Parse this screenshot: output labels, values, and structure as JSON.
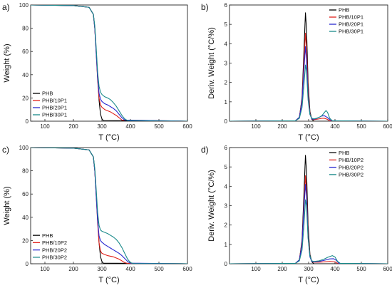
{
  "chart_data": [
    {
      "id": "a",
      "panel_label": "a)",
      "type": "line",
      "xlabel": "T (°C)",
      "ylabel": "Weight (%)",
      "xlim": [
        50,
        600
      ],
      "ylim": [
        0,
        100
      ],
      "xticks": [
        100,
        200,
        300,
        400,
        500,
        600
      ],
      "yticks": [
        0,
        20,
        40,
        60,
        80,
        100
      ],
      "legend_position": "bottom-left",
      "series": [
        {
          "name": "PHB",
          "color": "#000000",
          "x": [
            50,
            200,
            255,
            270,
            275,
            280,
            285,
            290,
            295,
            300,
            305,
            600
          ],
          "y": [
            100,
            99.5,
            98,
            92,
            80,
            60,
            38,
            18,
            6,
            2,
            0.5,
            0
          ]
        },
        {
          "name": "PHB/10P1",
          "color": "#e0201b",
          "x": [
            50,
            200,
            255,
            270,
            275,
            280,
            285,
            290,
            295,
            300,
            310,
            320,
            330,
            340,
            350,
            360,
            370,
            600
          ],
          "y": [
            100,
            99.5,
            98,
            92,
            80,
            58,
            35,
            20,
            14,
            12,
            10,
            9,
            8,
            6.5,
            5,
            3,
            1,
            0
          ]
        },
        {
          "name": "PHB/20P1",
          "color": "#2828d0",
          "x": [
            50,
            200,
            255,
            270,
            275,
            280,
            285,
            290,
            295,
            300,
            310,
            320,
            330,
            340,
            350,
            360,
            370,
            380,
            600
          ],
          "y": [
            100,
            99.5,
            98,
            92,
            80,
            58,
            37,
            24,
            19,
            17,
            15,
            14,
            12.5,
            11,
            9,
            6,
            3,
            1,
            0
          ]
        },
        {
          "name": "PHB/30P1",
          "color": "#1a8a8a",
          "x": [
            50,
            200,
            255,
            270,
            275,
            280,
            285,
            290,
            295,
            300,
            310,
            320,
            330,
            340,
            350,
            360,
            370,
            380,
            390,
            600
          ],
          "y": [
            100,
            99.5,
            98,
            92,
            82,
            63,
            42,
            30,
            25,
            23,
            21,
            20,
            18.5,
            16,
            13,
            9,
            5,
            2,
            0.5,
            0
          ]
        }
      ]
    },
    {
      "id": "b",
      "panel_label": "b)",
      "type": "line",
      "xlabel": "T (°C)",
      "ylabel": "Deriv. Weight (°C/%)",
      "xlim": [
        0,
        600
      ],
      "ylim": [
        0,
        6
      ],
      "xticks": [
        100,
        200,
        300,
        400,
        500,
        600
      ],
      "yticks": [
        0,
        1,
        2,
        3,
        4,
        5,
        6
      ],
      "legend_position": "top-right",
      "series": [
        {
          "name": "PHB",
          "color": "#000000",
          "x": [
            0,
            250,
            265,
            275,
            282,
            288,
            292,
            298,
            305,
            312,
            320,
            600
          ],
          "y": [
            0,
            0.02,
            0.2,
            1.2,
            3.5,
            5.6,
            4.8,
            2.0,
            0.5,
            0.1,
            0,
            0
          ]
        },
        {
          "name": "PHB/10P1",
          "color": "#e0201b",
          "x": [
            0,
            250,
            265,
            275,
            282,
            288,
            292,
            298,
            305,
            312,
            320,
            330,
            340,
            350,
            360,
            370,
            380,
            600
          ],
          "y": [
            0,
            0.02,
            0.2,
            1.1,
            3.0,
            4.55,
            3.8,
            1.6,
            0.4,
            0.12,
            0.08,
            0.1,
            0.12,
            0.15,
            0.15,
            0.1,
            0.02,
            0
          ]
        },
        {
          "name": "PHB/20P1",
          "color": "#2828d0",
          "x": [
            0,
            250,
            265,
            275,
            282,
            288,
            292,
            298,
            305,
            312,
            320,
            330,
            340,
            350,
            360,
            370,
            380,
            390,
            600
          ],
          "y": [
            0,
            0.02,
            0.2,
            1.0,
            2.6,
            3.85,
            3.2,
            1.3,
            0.35,
            0.12,
            0.1,
            0.14,
            0.2,
            0.27,
            0.28,
            0.2,
            0.08,
            0.02,
            0
          ]
        },
        {
          "name": "PHB/30P1",
          "color": "#1a8a8a",
          "x": [
            0,
            250,
            265,
            275,
            282,
            288,
            292,
            298,
            305,
            312,
            320,
            330,
            340,
            350,
            360,
            366,
            372,
            380,
            390,
            600
          ],
          "y": [
            0,
            0.02,
            0.15,
            0.7,
            1.8,
            2.9,
            2.6,
            1.1,
            0.35,
            0.15,
            0.12,
            0.15,
            0.2,
            0.28,
            0.45,
            0.55,
            0.45,
            0.15,
            0.02,
            0
          ]
        }
      ]
    },
    {
      "id": "c",
      "panel_label": "c)",
      "type": "line",
      "xlabel": "T (°C)",
      "ylabel": "Weight (%)",
      "xlim": [
        50,
        600
      ],
      "ylim": [
        0,
        100
      ],
      "xticks": [
        100,
        200,
        300,
        400,
        500,
        600
      ],
      "yticks": [
        0,
        20,
        40,
        60,
        80,
        100
      ],
      "legend_position": "bottom-left",
      "series": [
        {
          "name": "PHB",
          "color": "#000000",
          "x": [
            50,
            200,
            255,
            270,
            275,
            280,
            285,
            290,
            295,
            300,
            305,
            600
          ],
          "y": [
            100,
            99.5,
            98,
            92,
            80,
            60,
            38,
            18,
            6,
            2,
            0.5,
            0
          ]
        },
        {
          "name": "PHB/10P2",
          "color": "#e0201b",
          "x": [
            50,
            200,
            255,
            270,
            275,
            280,
            285,
            290,
            295,
            300,
            310,
            320,
            330,
            340,
            350,
            360,
            370,
            380,
            390,
            600
          ],
          "y": [
            100,
            99.5,
            98,
            92,
            80,
            58,
            35,
            18,
            11,
            9,
            8,
            7,
            6.5,
            6,
            5,
            4,
            2.5,
            1,
            0.3,
            0
          ]
        },
        {
          "name": "PHB/20P2",
          "color": "#2828d0",
          "x": [
            50,
            200,
            255,
            270,
            275,
            280,
            285,
            290,
            295,
            300,
            310,
            320,
            330,
            340,
            350,
            360,
            370,
            380,
            390,
            400,
            600
          ],
          "y": [
            100,
            99.5,
            98,
            92,
            80,
            58,
            37,
            24,
            20,
            18.5,
            16.5,
            15,
            13.5,
            12,
            10.5,
            9,
            7,
            4.5,
            2,
            0.5,
            0
          ]
        },
        {
          "name": "PHB/30P2",
          "color": "#1a8a8a",
          "x": [
            50,
            200,
            255,
            270,
            275,
            280,
            285,
            290,
            295,
            300,
            310,
            320,
            330,
            340,
            350,
            360,
            370,
            380,
            390,
            400,
            410,
            600
          ],
          "y": [
            100,
            99.5,
            98,
            92,
            82,
            64,
            44,
            33,
            29,
            28,
            27,
            26,
            24.5,
            23,
            21,
            18,
            14,
            9,
            4,
            1,
            0.2,
            0
          ]
        }
      ]
    },
    {
      "id": "d",
      "panel_label": "d)",
      "type": "line",
      "xlabel": "T (°C)",
      "ylabel": "Deriv. Weight (°C/%)",
      "xlim": [
        0,
        600
      ],
      "ylim": [
        0,
        6
      ],
      "xticks": [
        100,
        200,
        300,
        400,
        500,
        600
      ],
      "yticks": [
        0,
        1,
        2,
        3,
        4,
        5,
        6
      ],
      "legend_position": "top-right",
      "series": [
        {
          "name": "PHB",
          "color": "#000000",
          "x": [
            0,
            250,
            265,
            275,
            282,
            288,
            292,
            298,
            305,
            312,
            320,
            600
          ],
          "y": [
            0,
            0.02,
            0.2,
            1.2,
            3.5,
            5.6,
            4.8,
            2.0,
            0.5,
            0.1,
            0,
            0
          ]
        },
        {
          "name": "PHB/10P2",
          "color": "#e0201b",
          "x": [
            0,
            250,
            265,
            275,
            282,
            288,
            292,
            298,
            305,
            312,
            320,
            340,
            360,
            380,
            400,
            410,
            600
          ],
          "y": [
            0,
            0.02,
            0.2,
            1.1,
            3.0,
            4.55,
            3.8,
            1.6,
            0.4,
            0.12,
            0.08,
            0.08,
            0.1,
            0.12,
            0.1,
            0.02,
            0
          ]
        },
        {
          "name": "PHB/20P2",
          "color": "#2828d0",
          "x": [
            0,
            250,
            265,
            275,
            282,
            288,
            292,
            298,
            305,
            312,
            320,
            340,
            360,
            380,
            395,
            405,
            415,
            600
          ],
          "y": [
            0,
            0.02,
            0.2,
            1.0,
            2.8,
            4.1,
            3.5,
            1.4,
            0.35,
            0.12,
            0.1,
            0.12,
            0.18,
            0.25,
            0.26,
            0.18,
            0.02,
            0
          ]
        },
        {
          "name": "PHB/30P2",
          "color": "#1a8a8a",
          "x": [
            0,
            250,
            265,
            275,
            282,
            288,
            292,
            298,
            305,
            312,
            320,
            340,
            360,
            375,
            390,
            400,
            410,
            420,
            600
          ],
          "y": [
            0,
            0.02,
            0.15,
            0.7,
            1.9,
            3.3,
            3.0,
            1.3,
            0.4,
            0.15,
            0.12,
            0.15,
            0.25,
            0.35,
            0.42,
            0.35,
            0.12,
            0.02,
            0
          ]
        }
      ]
    }
  ]
}
